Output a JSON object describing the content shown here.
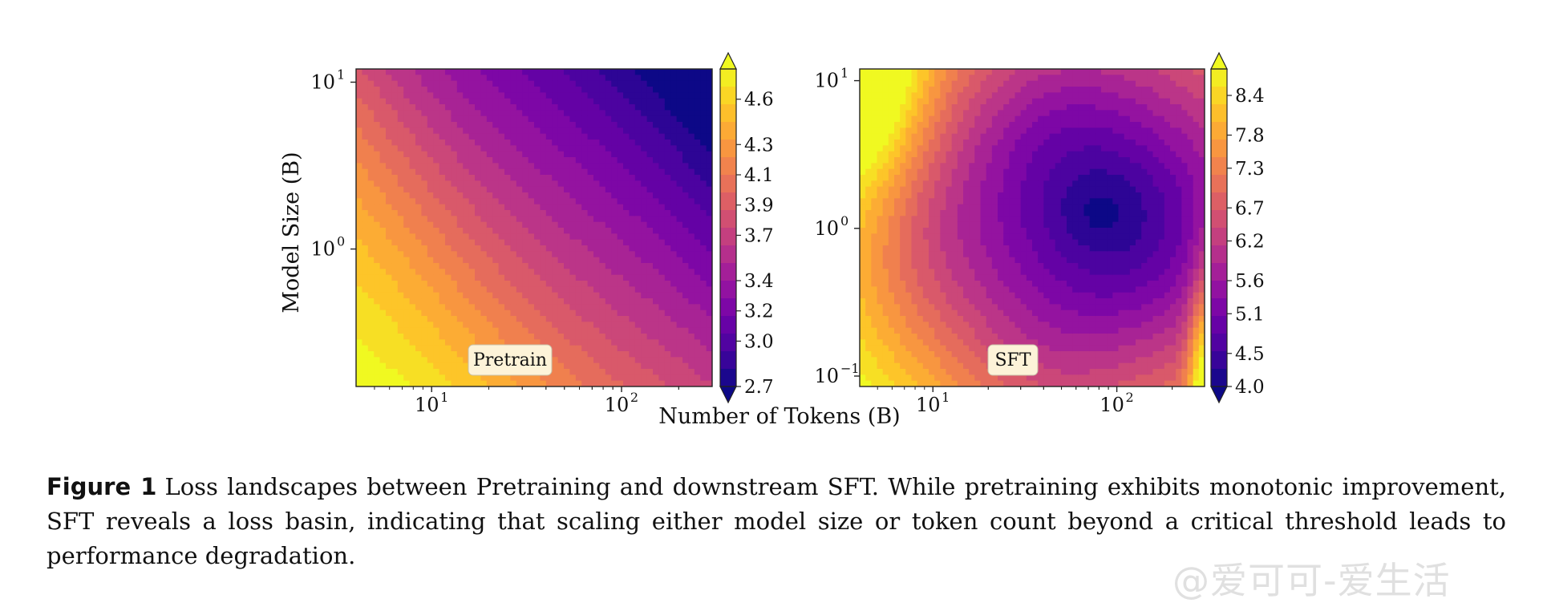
{
  "figure": {
    "caption_label": "Figure 1",
    "caption_text": "Loss landscapes between Pretraining and downstream SFT. While pretraining exhibits monotonic improvement, SFT reveals a loss basin, indicating that scaling either model size or token count beyond a critical threshold leads to performance degradation.",
    "watermark": "@爱可可-爱生活"
  },
  "chart_data": [
    {
      "type": "heatmap",
      "panel_label": "Pretrain",
      "xlabel": "Number of Tokens (B)",
      "ylabel": "Model Size (B)",
      "xscale": "log",
      "yscale": "log",
      "xlim": [
        4,
        300
      ],
      "ylim": [
        0.15,
        12
      ],
      "xticks": [
        {
          "value": 10,
          "base": "10",
          "exp": "1"
        },
        {
          "value": 100,
          "base": "10",
          "exp": "2"
        }
      ],
      "yticks": [
        {
          "value": 1,
          "base": "10",
          "exp": "0"
        },
        {
          "value": 10,
          "base": "10",
          "exp": "1"
        }
      ],
      "colormap": "plasma",
      "colorbar": {
        "min": 2.7,
        "max": 4.8,
        "ticks": [
          "4.6",
          "4.3",
          "4.1",
          "3.9",
          "3.7",
          "3.4",
          "3.2",
          "3.0",
          "2.7"
        ],
        "extend": "both"
      },
      "trend": "loss decreases monotonically with both tokens and model size; maximum at few tokens and small model, minimum at many tokens and large model"
    },
    {
      "type": "heatmap",
      "panel_label": "SFT",
      "xlabel": "Number of Tokens (B)",
      "ylabel": "Model Size (B)",
      "xscale": "log",
      "yscale": "log",
      "xlim": [
        4,
        300
      ],
      "ylim": [
        0.085,
        12
      ],
      "xticks": [
        {
          "value": 10,
          "base": "10",
          "exp": "1"
        },
        {
          "value": 100,
          "base": "10",
          "exp": "2"
        }
      ],
      "yticks": [
        {
          "value": 0.1,
          "base": "10",
          "exp": "−1"
        },
        {
          "value": 1,
          "base": "10",
          "exp": "0"
        },
        {
          "value": 10,
          "base": "10",
          "exp": "1"
        }
      ],
      "colormap": "plasma",
      "colorbar": {
        "min": 4.0,
        "max": 8.8,
        "ticks": [
          "8.4",
          "7.8",
          "7.3",
          "6.7",
          "6.2",
          "5.6",
          "5.1",
          "4.5",
          "4.0"
        ],
        "extend": "both"
      },
      "trend": "loss basin centered near 60B tokens and 1B parameters; loss rises toward few tokens with large model and toward many tokens with small model"
    }
  ],
  "colors": {
    "plasma": [
      "#0d0887",
      "#46039f",
      "#7201a8",
      "#9c179e",
      "#bd3786",
      "#d8576b",
      "#ed7953",
      "#fb9f3a",
      "#fdca26",
      "#f0f921"
    ],
    "label_box_bg": "#fdf3d8",
    "label_box_border": "#c8c0a8"
  }
}
